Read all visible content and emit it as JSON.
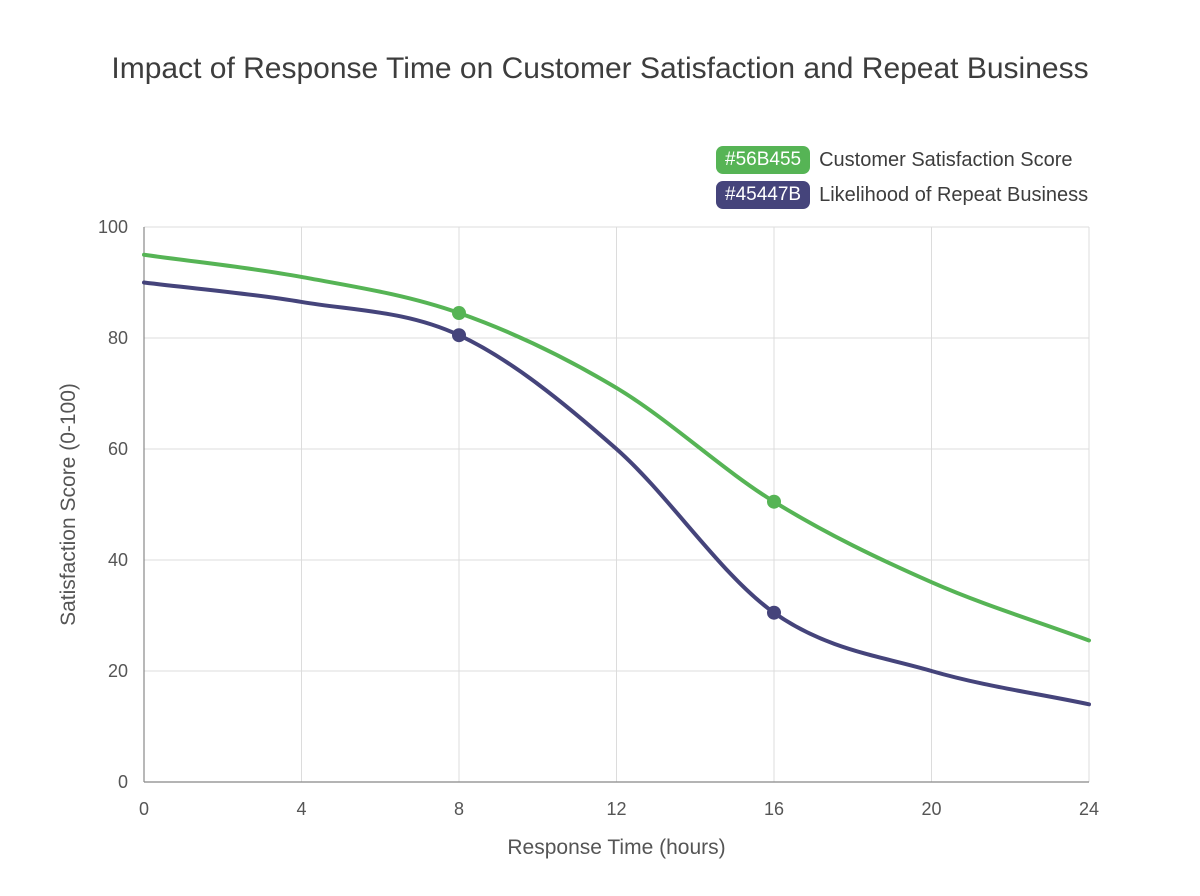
{
  "chart_data": {
    "type": "line",
    "title": "Impact of Response Time on Customer Satisfaction and Repeat Business",
    "xlabel": "Response Time (hours)",
    "ylabel": "Satisfaction Score (0-100)",
    "xlim": [
      0,
      24
    ],
    "ylim": [
      0,
      100
    ],
    "xticks": [
      "0",
      "4",
      "8",
      "12",
      "16",
      "20",
      "24"
    ],
    "yticks": [
      "0",
      "20",
      "40",
      "60",
      "80",
      "100"
    ],
    "grid": true,
    "legend_position": "top-right",
    "series": [
      {
        "name": "Customer Satisfaction Score",
        "legend_badge": "#56B455",
        "color": "#56B455",
        "x": [
          0,
          4,
          8,
          12,
          16,
          20,
          24
        ],
        "y": [
          95,
          91,
          84.5,
          71,
          50.5,
          36,
          25.5
        ],
        "markers_at": [
          8,
          16
        ]
      },
      {
        "name": "Likelihood of Repeat Business",
        "legend_badge": "#45447B",
        "color": "#45447B",
        "x": [
          0,
          4,
          8,
          12,
          16,
          20,
          24
        ],
        "y": [
          90,
          86.5,
          80.5,
          60,
          30.5,
          20,
          14
        ],
        "markers_at": [
          8,
          16
        ]
      }
    ]
  }
}
